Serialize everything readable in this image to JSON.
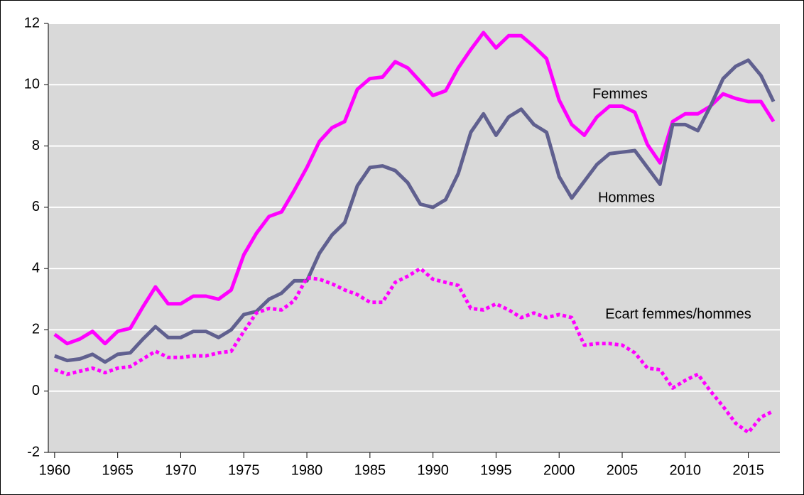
{
  "chart_data": {
    "type": "line",
    "x": [
      1960,
      1961,
      1962,
      1963,
      1964,
      1965,
      1966,
      1967,
      1968,
      1969,
      1970,
      1971,
      1972,
      1973,
      1974,
      1975,
      1976,
      1977,
      1978,
      1979,
      1980,
      1981,
      1982,
      1983,
      1984,
      1985,
      1986,
      1987,
      1988,
      1989,
      1990,
      1991,
      1992,
      1993,
      1994,
      1995,
      1996,
      1997,
      1998,
      1999,
      2000,
      2001,
      2002,
      2003,
      2004,
      2005,
      2006,
      2007,
      2008,
      2009,
      2010,
      2011,
      2012,
      2013,
      2014,
      2015,
      2016,
      2017
    ],
    "series": [
      {
        "name": "Femmes",
        "color": "#ff00ff",
        "dash": "solid",
        "values": [
          1.85,
          1.55,
          1.7,
          1.95,
          1.55,
          1.95,
          2.05,
          2.75,
          3.4,
          2.85,
          2.85,
          3.1,
          3.1,
          3.0,
          3.3,
          4.45,
          5.15,
          5.7,
          5.85,
          6.55,
          7.3,
          8.15,
          8.6,
          8.8,
          9.85,
          10.2,
          10.25,
          10.75,
          10.55,
          10.1,
          9.65,
          9.8,
          10.55,
          11.15,
          11.7,
          11.2,
          11.6,
          11.6,
          11.25,
          10.85,
          9.5,
          8.7,
          8.35,
          8.95,
          9.3,
          9.3,
          9.1,
          8.05,
          7.45,
          8.8,
          9.05,
          9.05,
          9.3,
          9.7,
          9.55,
          9.45,
          9.45,
          8.8
        ]
      },
      {
        "name": "Hommes",
        "color": "#60608f",
        "dash": "solid",
        "values": [
          1.15,
          1.0,
          1.05,
          1.2,
          0.95,
          1.2,
          1.25,
          1.7,
          2.1,
          1.75,
          1.75,
          1.95,
          1.95,
          1.75,
          2.0,
          2.5,
          2.6,
          3.0,
          3.2,
          3.6,
          3.6,
          4.5,
          5.1,
          5.5,
          6.7,
          7.3,
          7.35,
          7.2,
          6.8,
          6.1,
          6.0,
          6.25,
          7.1,
          8.45,
          9.05,
          8.35,
          8.95,
          9.2,
          8.7,
          8.45,
          7.0,
          6.3,
          6.85,
          7.4,
          7.75,
          7.8,
          7.85,
          7.3,
          6.75,
          8.7,
          8.7,
          8.5,
          9.3,
          10.2,
          10.6,
          10.8,
          10.3,
          9.45
        ]
      },
      {
        "name": "Ecart femmes/hommes",
        "color": "#ff00ff",
        "dash": "dotted",
        "values": [
          0.7,
          0.55,
          0.65,
          0.75,
          0.6,
          0.75,
          0.8,
          1.05,
          1.3,
          1.1,
          1.1,
          1.15,
          1.15,
          1.25,
          1.3,
          1.95,
          2.55,
          2.7,
          2.65,
          2.95,
          3.7,
          3.65,
          3.5,
          3.3,
          3.15,
          2.9,
          2.9,
          3.55,
          3.75,
          4.0,
          3.65,
          3.55,
          3.45,
          2.7,
          2.65,
          2.85,
          2.65,
          2.4,
          2.55,
          2.4,
          2.5,
          2.4,
          1.5,
          1.55,
          1.55,
          1.5,
          1.25,
          0.75,
          0.7,
          0.1,
          0.35,
          0.55,
          0.0,
          -0.5,
          -1.05,
          -1.35,
          -0.85,
          -0.65
        ]
      }
    ],
    "xlim": [
      1959.5,
      2017.5
    ],
    "xticks": [
      1960,
      1965,
      1970,
      1975,
      1980,
      1985,
      1990,
      1995,
      2000,
      2005,
      2010,
      2015
    ],
    "ylim": [
      -2,
      12
    ],
    "yticks": [
      -2,
      0,
      2,
      4,
      6,
      8,
      10,
      12
    ],
    "grid": true
  }
}
